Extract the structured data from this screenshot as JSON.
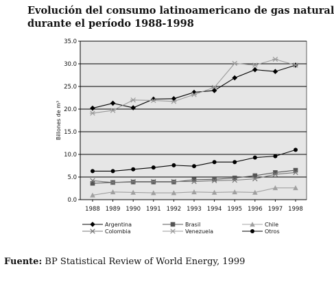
{
  "chart_data": {
    "type": "line",
    "title": [
      "Evolución del consumo latinoamericano de gas natural",
      "durante el período 1988-1998"
    ],
    "ylabel": "Billones de m³",
    "xlabel": "",
    "ylim": [
      0,
      35
    ],
    "yticks": [
      "0.0",
      "5.0",
      "10.0",
      "15.0",
      "20.0",
      "25.0",
      "30.0",
      "35.0"
    ],
    "grid": "horizontal",
    "legend_position": "bottom",
    "categories": [
      "1988",
      "1989",
      "1990",
      "1991",
      "1992",
      "1993",
      "1994",
      "1995",
      "1996",
      "1997",
      "1998"
    ],
    "series": [
      {
        "name": "Argentina",
        "marker": "diamond",
        "color": "#000000",
        "values": [
          20.2,
          21.3,
          20.3,
          22.2,
          22.3,
          23.7,
          24.1,
          26.9,
          28.7,
          28.3,
          29.7
        ]
      },
      {
        "name": "Brasil",
        "marker": "square",
        "color": "#555555",
        "values": [
          3.6,
          3.8,
          3.9,
          3.9,
          3.9,
          4.4,
          4.5,
          4.8,
          5.3,
          6.0,
          6.5
        ]
      },
      {
        "name": "Chile",
        "marker": "triangle",
        "color": "#a0a0a0",
        "values": [
          1.0,
          1.7,
          1.6,
          1.5,
          1.5,
          1.7,
          1.6,
          1.7,
          1.6,
          2.6,
          2.6
        ]
      },
      {
        "name": "Colombia",
        "marker": "x",
        "color": "#777777",
        "values": [
          4.2,
          3.8,
          4.0,
          4.0,
          4.0,
          4.0,
          4.2,
          4.3,
          4.6,
          5.6,
          6.0
        ]
      },
      {
        "name": "Venezuela",
        "marker": "asterisk",
        "color": "#9a9a9a",
        "values": [
          19.1,
          19.7,
          22.0,
          21.9,
          21.7,
          23.2,
          24.8,
          30.1,
          29.7,
          31.0,
          29.7
        ]
      },
      {
        "name": "Otros",
        "marker": "circle",
        "color": "#000000",
        "values": [
          6.3,
          6.3,
          6.7,
          7.1,
          7.6,
          7.4,
          8.3,
          8.3,
          9.3,
          9.6,
          11.0
        ]
      }
    ]
  },
  "source": {
    "label": "Fuente:",
    "text": "BP Statistical Review of World Energy, 1999"
  }
}
